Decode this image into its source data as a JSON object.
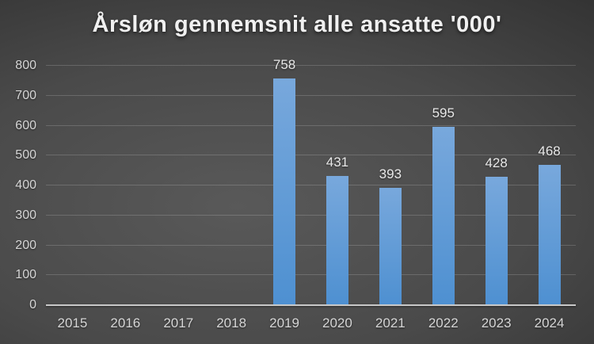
{
  "theme": {
    "background_center": "#595959",
    "background_edge": "#1e1e1e",
    "bar_color": "#5b9bd5",
    "bar_gradient_top": "#78a8dc",
    "bar_gradient_bottom": "#4e90d1",
    "gridline_color": "rgba(255,255,255,0.17)",
    "axis_line_color": "#c9c9c9",
    "tick_label_color": "#d6d6d6",
    "data_label_color": "#e8e8e8",
    "title_color": "#f0f0f0"
  },
  "chart_data": {
    "type": "bar",
    "title": "Årsløn gennemsnit alle ansatte '000'",
    "categories": [
      "2015",
      "2016",
      "2017",
      "2018",
      "2019",
      "2020",
      "2021",
      "2022",
      "2023",
      "2024"
    ],
    "values": [
      null,
      null,
      null,
      null,
      758,
      431,
      393,
      595,
      428,
      468
    ],
    "xlabel": "",
    "ylabel": "",
    "ylim": [
      0,
      800
    ],
    "yticks": [
      0,
      100,
      200,
      300,
      400,
      500,
      600,
      700,
      800
    ],
    "grid": true,
    "legend": false,
    "data_labels_shown": true
  }
}
